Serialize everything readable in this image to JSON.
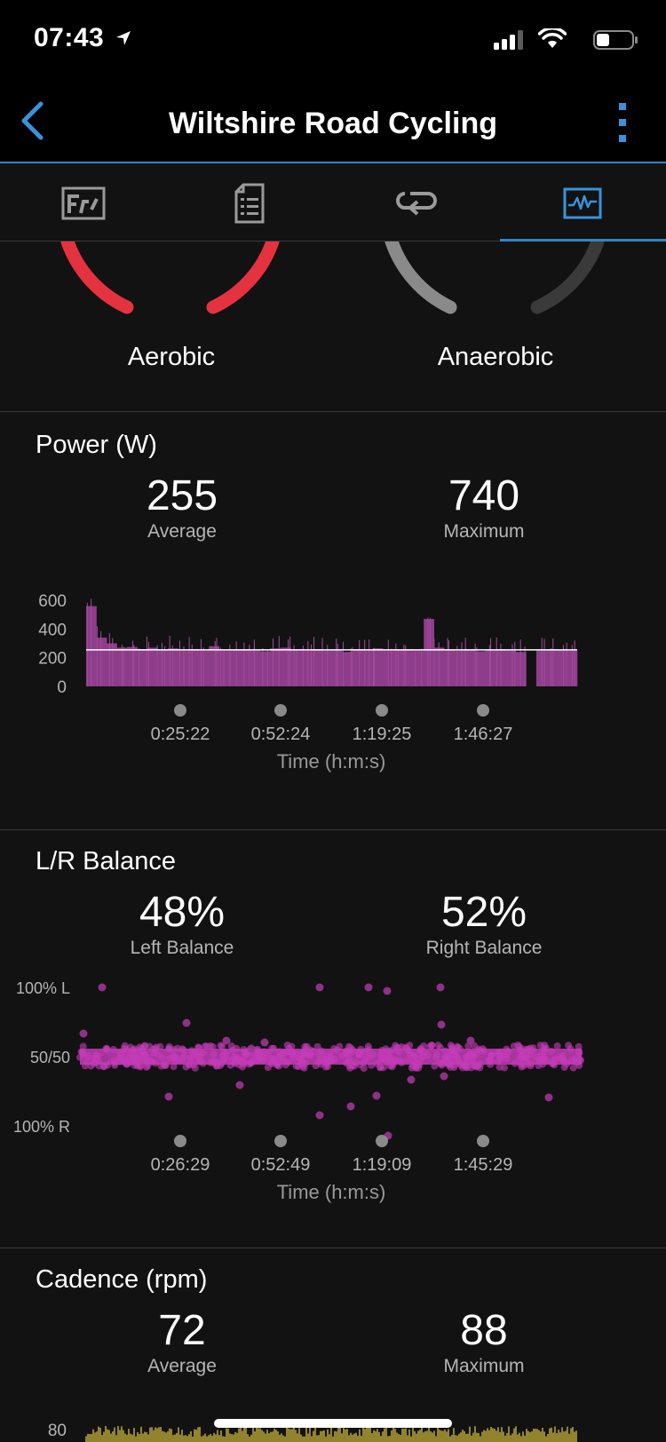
{
  "status_bar": {
    "time": "07:43"
  },
  "header": {
    "title": "Wiltshire Road Cycling"
  },
  "tabs": [
    {
      "icon": "stats-overview-icon"
    },
    {
      "icon": "details-list-icon"
    },
    {
      "icon": "laps-icon"
    },
    {
      "icon": "charts-icon",
      "active": true
    }
  ],
  "intensity": {
    "aerobic_label": "Aerobic",
    "anaerobic_label": "Anaerobic"
  },
  "power": {
    "title": "Power (W)",
    "average_value": "255",
    "average_label": "Average",
    "maximum_value": "740",
    "maximum_label": "Maximum"
  },
  "balance": {
    "title": "L/R Balance",
    "left_value": "48%",
    "left_label": "Left Balance",
    "right_value": "52%",
    "right_label": "Right Balance"
  },
  "cadence": {
    "title": "Cadence (rpm)",
    "average_value": "72",
    "average_label": "Average",
    "maximum_value": "88",
    "maximum_label": "Maximum"
  },
  "chart_data": [
    {
      "type": "area",
      "series": [
        {
          "values": [
            560,
            340,
            300,
            270,
            275,
            260,
            270,
            255,
            265,
            250,
            260,
            250,
            280,
            250,
            255,
            260,
            250,
            245,
            265,
            270,
            255,
            250,
            260,
            250,
            255,
            240,
            260,
            250,
            265,
            250,
            255,
            260,
            250,
            470,
            270,
            255,
            250,
            260,
            245,
            255,
            260,
            250,
            240,
            0,
            250,
            260,
            255,
            250
          ]
        }
      ],
      "average_line": 255,
      "ylim": [
        0,
        700
      ],
      "yticks": [
        "600",
        "400",
        "200",
        "0"
      ],
      "xticks": [
        "0:25:22",
        "0:52:24",
        "1:19:25",
        "1:46:27"
      ],
      "xlabel": "Time (h:m:s)",
      "color": "#8e3d8a"
    },
    {
      "type": "scatter",
      "yticks": [
        "100% L",
        "50/50",
        "100% R"
      ],
      "xticks": [
        "0:26:29",
        "0:52:49",
        "1:19:09",
        "1:45:29"
      ],
      "xlabel": "Time (h:m:s)",
      "color": "#c43cb8"
    },
    {
      "type": "area",
      "yticks": [
        "80"
      ],
      "color": "#d8c23c"
    }
  ]
}
